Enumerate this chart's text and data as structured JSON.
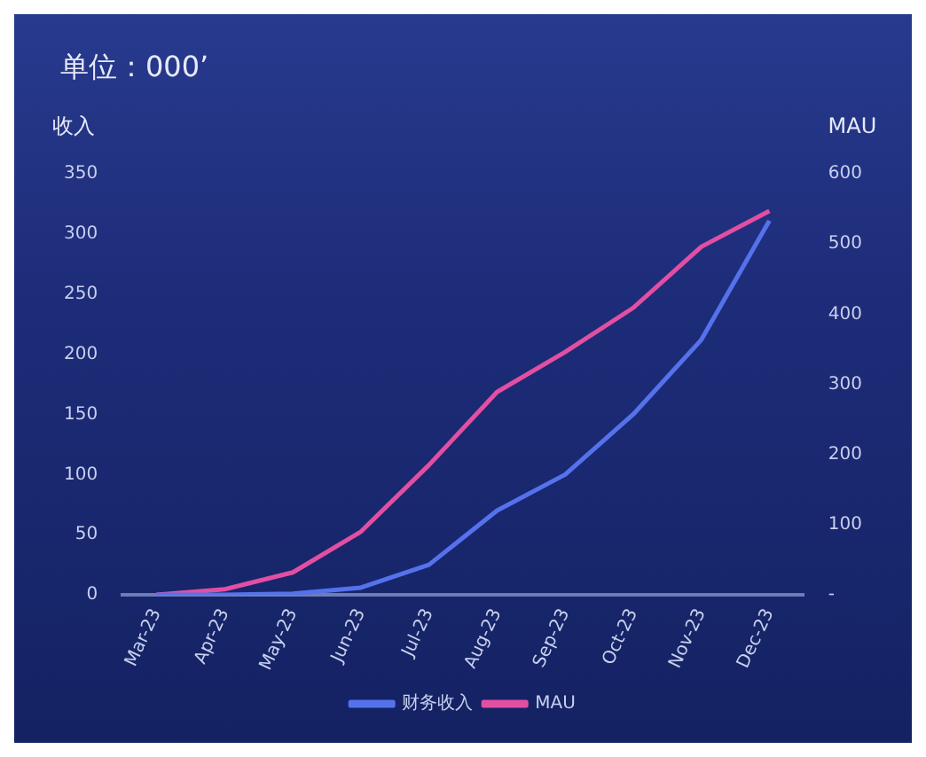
{
  "chart_data": {
    "type": "line",
    "title": "单位：000’",
    "ylabel": "收入",
    "y2label": "MAU",
    "categories": [
      "Mar-23",
      "Apr-23",
      "May-23",
      "Jun-23",
      "Jul-23",
      "Aug-23",
      "Sep-23",
      "Oct-23",
      "Nov-23",
      "Dec-23"
    ],
    "series": [
      {
        "name": "财务收入",
        "color": "#5572ec",
        "values": [
          0,
          0,
          1,
          6,
          25,
          70,
          100,
          150,
          212,
          311
        ]
      },
      {
        "name": "MAU",
        "color": "#e24fa2",
        "axis": "y2",
        "values": [
          0,
          8,
          32,
          90,
          185,
          289,
          346,
          409,
          496,
          547
        ]
      }
    ],
    "ylim": [
      0,
      350
    ],
    "yticks": [
      0,
      50,
      100,
      150,
      200,
      250,
      300,
      350
    ],
    "y2lim": [
      0,
      600
    ],
    "y2ticks": [
      {
        "value": 0,
        "label": "-"
      },
      100,
      200,
      300,
      400,
      500,
      600
    ],
    "grid": false,
    "legend": "bottom",
    "marker": "none",
    "line_style": "solid"
  }
}
